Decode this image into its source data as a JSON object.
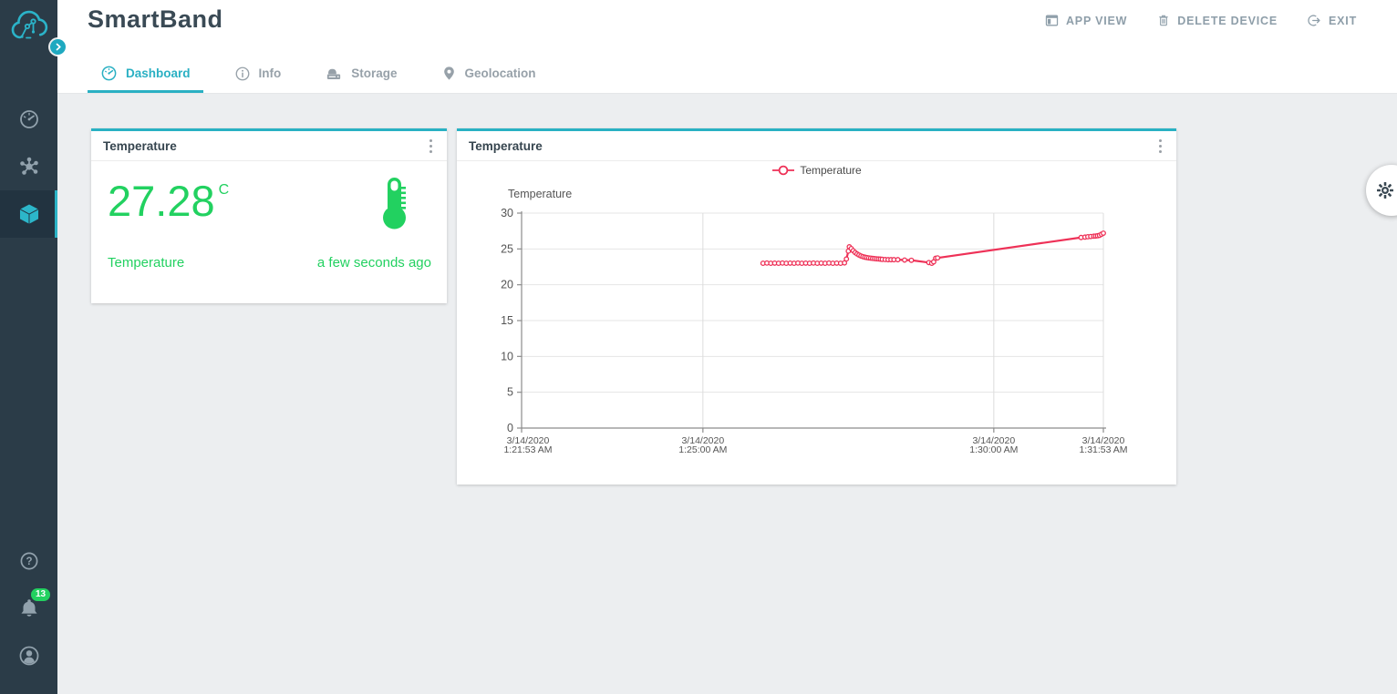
{
  "app": {
    "title": "SmartBand"
  },
  "header": {
    "actions": [
      {
        "label": "APP VIEW"
      },
      {
        "label": "DELETE DEVICE"
      },
      {
        "label": "EXIT"
      }
    ]
  },
  "tabs": [
    {
      "label": "Dashboard",
      "active": true
    },
    {
      "label": "Info",
      "active": false
    },
    {
      "label": "Storage",
      "active": false
    },
    {
      "label": "Geolocation",
      "active": false
    }
  ],
  "sidebar": {
    "notification_badge": "13"
  },
  "widgets": {
    "value": {
      "title": "Temperature",
      "value": "27.28",
      "unit": "C",
      "label": "Temperature",
      "updated": "a few seconds ago"
    },
    "chart": {
      "title": "Temperature"
    }
  },
  "colors": {
    "accent": "#29b1c3",
    "green": "#22d160",
    "chart_line": "#ee3157",
    "sidebar_bg": "#2b3c48"
  },
  "chart_data": {
    "type": "line",
    "title": "",
    "ylabel": "Temperature",
    "legend": "Temperature",
    "legend_position": "top-center",
    "grid": true,
    "ylim": [
      0,
      30
    ],
    "ytick_step": 5,
    "x_range": [
      0,
      600
    ],
    "x_ticks": [
      {
        "t": 0,
        "label": [
          "3/14/2020",
          "1:21:53 AM"
        ]
      },
      {
        "t": 187,
        "label": [
          "3/14/2020",
          "1:25:00 AM"
        ]
      },
      {
        "t": 487,
        "label": [
          "3/14/2020",
          "1:30:00 AM"
        ]
      },
      {
        "t": 600,
        "label": [
          "3/14/2020",
          "1:31:53 AM"
        ]
      }
    ],
    "series": [
      {
        "name": "Temperature",
        "color": "#ee3157",
        "points": [
          [
            249,
            23.0
          ],
          [
            253,
            23.03
          ],
          [
            257,
            23.0
          ],
          [
            261,
            23.02
          ],
          [
            265,
            23.0
          ],
          [
            269,
            23.03
          ],
          [
            273,
            23.0
          ],
          [
            277,
            23.02
          ],
          [
            281,
            23.0
          ],
          [
            285,
            23.03
          ],
          [
            289,
            23.0
          ],
          [
            293,
            23.02
          ],
          [
            297,
            23.0
          ],
          [
            301,
            23.03
          ],
          [
            305,
            23.0
          ],
          [
            309,
            23.02
          ],
          [
            313,
            23.0
          ],
          [
            317,
            23.03
          ],
          [
            321,
            23.0
          ],
          [
            325,
            23.02
          ],
          [
            329,
            23.0
          ],
          [
            333,
            23.05
          ],
          [
            335,
            23.6
          ],
          [
            337,
            24.7
          ],
          [
            338,
            25.3
          ],
          [
            340,
            25.05
          ],
          [
            342,
            24.75
          ],
          [
            344,
            24.5
          ],
          [
            346,
            24.3
          ],
          [
            348,
            24.15
          ],
          [
            350,
            24.02
          ],
          [
            352,
            23.92
          ],
          [
            354,
            23.85
          ],
          [
            356,
            23.8
          ],
          [
            358,
            23.75
          ],
          [
            360,
            23.72
          ],
          [
            362,
            23.68
          ],
          [
            364,
            23.65
          ],
          [
            366,
            23.62
          ],
          [
            368,
            23.6
          ],
          [
            370,
            23.58
          ],
          [
            372,
            23.55
          ],
          [
            375,
            23.52
          ],
          [
            378,
            23.5
          ],
          [
            381,
            23.5
          ],
          [
            384,
            23.5
          ],
          [
            388,
            23.5
          ],
          [
            395,
            23.45
          ],
          [
            402,
            23.42
          ],
          [
            420,
            23.1
          ],
          [
            423,
            23.0
          ],
          [
            425,
            23.2
          ],
          [
            427,
            23.7
          ],
          [
            429,
            23.75
          ],
          [
            577,
            26.6
          ],
          [
            581,
            26.65
          ],
          [
            584,
            26.7
          ],
          [
            587,
            26.74
          ],
          [
            590,
            26.78
          ],
          [
            592,
            26.8
          ],
          [
            594,
            26.84
          ],
          [
            596,
            26.9
          ],
          [
            598,
            27.05
          ],
          [
            600,
            27.2
          ]
        ]
      }
    ]
  }
}
